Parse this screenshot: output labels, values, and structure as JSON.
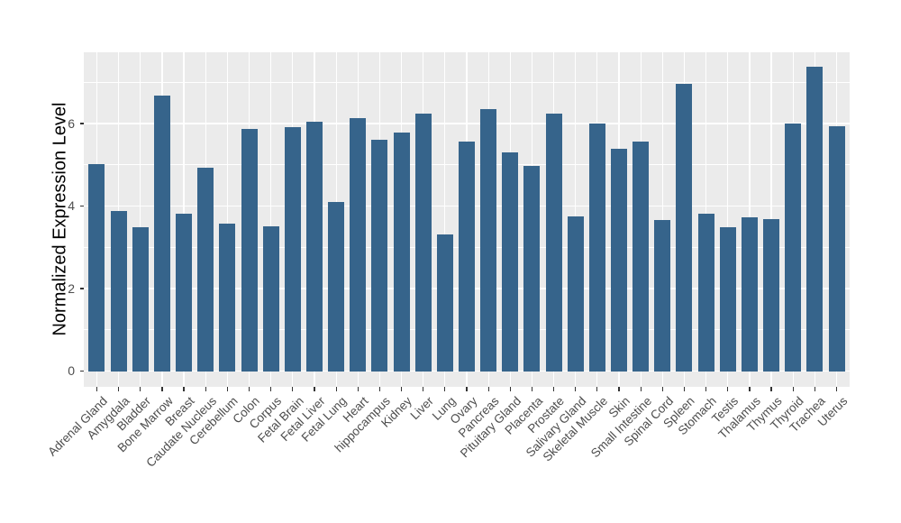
{
  "chart_data": {
    "type": "bar",
    "title": "",
    "xlabel": "",
    "ylabel": "Normalized Expression Level",
    "categories": [
      "Adrenal Gland",
      "Amygdala",
      "Bladder",
      "Bone Marrow",
      "Breast",
      "Caudate Nucleus",
      "Cerebellum",
      "Colon",
      "Corpus",
      "Fetal Brain",
      "Fetal Liver",
      "Fetal Lung",
      "Heart",
      "hippocampus",
      "Kidney",
      "Liver",
      "Lung",
      "Ovary",
      "Pancreas",
      "Pituitary Gland",
      "Placenta",
      "Prostate",
      "Salivary Gland",
      "Skeletal Muscle",
      "Skin",
      "Small Intestine",
      "Spinal Cord",
      "Spleen",
      "Stomach",
      "Testis",
      "Thalamus",
      "Thymus",
      "Thyroid",
      "Trachea",
      "Uterus"
    ],
    "values": [
      5.01,
      3.87,
      3.49,
      6.67,
      3.81,
      4.93,
      3.58,
      5.88,
      3.5,
      5.92,
      6.05,
      4.1,
      6.14,
      5.6,
      5.78,
      6.25,
      3.32,
      5.57,
      6.36,
      5.31,
      4.98,
      6.24,
      3.75,
      6.01,
      5.39,
      5.57,
      3.67,
      6.97,
      3.82,
      3.48,
      3.73,
      3.69,
      6.0,
      7.38,
      5.93
    ],
    "yticks": [
      0,
      2,
      4,
      6
    ],
    "ylim": [
      -0.39,
      7.73
    ],
    "grid": {
      "major_y": [
        0,
        2,
        4,
        6
      ],
      "minor_y": [
        1,
        3,
        5,
        7
      ],
      "vertical_major_at_each_category": true
    },
    "legend": "none",
    "x_label_rotation_deg": 45,
    "colors": {
      "bar_fill": "#36648B",
      "panel_background": "#EBEBEB",
      "gridline": "#FFFFFF",
      "axis_text": "#4D4D4D",
      "axis_title": "#000000",
      "tick_mark": "#333333",
      "figure_background": "#FFFFFF"
    }
  }
}
